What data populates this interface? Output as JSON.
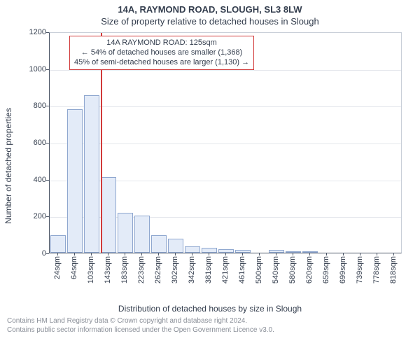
{
  "title_line1": "14A, RAYMOND ROAD, SLOUGH, SL3 8LW",
  "title_line2": "Size of property relative to detached houses in Slough",
  "chart": {
    "type": "histogram",
    "ylabel": "Number of detached properties",
    "xlabel": "Distribution of detached houses by size in Slough",
    "ylim": [
      0,
      1200
    ],
    "ytick_step": 200,
    "xticks": [
      "24sqm",
      "64sqm",
      "103sqm",
      "143sqm",
      "183sqm",
      "223sqm",
      "262sqm",
      "302sqm",
      "342sqm",
      "381sqm",
      "421sqm",
      "461sqm",
      "500sqm",
      "540sqm",
      "580sqm",
      "620sqm",
      "659sqm",
      "699sqm",
      "739sqm",
      "778sqm",
      "818sqm"
    ],
    "bar_values": [
      95,
      780,
      855,
      410,
      215,
      200,
      95,
      75,
      35,
      25,
      20,
      15,
      0,
      15,
      5,
      5,
      0,
      0,
      0,
      0,
      0
    ],
    "bar_fill": "#e3ebf8",
    "bar_border": "#8fa7cf",
    "marker_x_sqm": 125,
    "marker_color": "#d13a3a",
    "background_color": "#ffffff",
    "grid_color": "#e4e7ec",
    "axis_color": "#4b5566",
    "annotation": {
      "line1": "14A RAYMOND ROAD: 125sqm",
      "line2": "← 54% of detached houses are smaller (1,368)",
      "line3": "45% of semi-detached houses are larger (1,130) →"
    }
  },
  "footer": {
    "line1": "Contains HM Land Registry data © Crown copyright and database right 2024.",
    "line2": "Contains public sector information licensed under the Open Government Licence v3.0."
  }
}
